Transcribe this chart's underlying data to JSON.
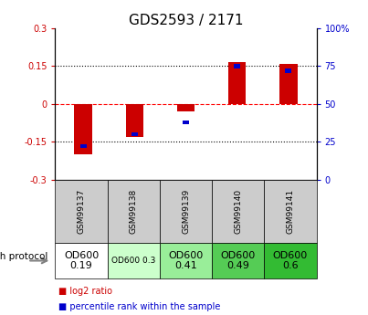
{
  "title": "GDS2593 / 2171",
  "samples": [
    "GSM99137",
    "GSM99138",
    "GSM99139",
    "GSM99140",
    "GSM99141"
  ],
  "log2_ratios": [
    -0.2,
    -0.13,
    -0.03,
    0.165,
    0.16
  ],
  "percentile_ranks": [
    22,
    30,
    38,
    75,
    72
  ],
  "ylim_left": [
    -0.3,
    0.3
  ],
  "ylim_right": [
    0,
    100
  ],
  "yticks_left": [
    -0.3,
    -0.15,
    0,
    0.15,
    0.3
  ],
  "ytick_labels_left": [
    "-0.3",
    "-0.15",
    "0",
    "0.15",
    "0.3"
  ],
  "yticks_right": [
    0,
    25,
    50,
    75,
    100
  ],
  "ytick_labels_right": [
    "0",
    "25",
    "50",
    "75",
    "100%"
  ],
  "hlines": [
    -0.15,
    0,
    0.15
  ],
  "hline_styles": [
    "dotted",
    "dashed",
    "dotted"
  ],
  "hline_colors": [
    "black",
    "red",
    "black"
  ],
  "bar_color_red": "#cc0000",
  "bar_color_blue": "#0000cc",
  "protocol_labels": [
    "OD600\n0.19",
    "OD600 0.3",
    "OD600\n0.41",
    "OD600\n0.49",
    "OD600\n0.6"
  ],
  "protocol_colors": [
    "#ffffff",
    "#ccffcc",
    "#99ee99",
    "#55cc55",
    "#33bb33"
  ],
  "protocol_text_sizes": [
    8,
    6.5,
    8,
    8,
    8
  ],
  "growth_protocol_label": "growth protocol",
  "legend_red_label": "log2 ratio",
  "legend_blue_label": "percentile rank within the sample",
  "tick_label_color_left": "#cc0000",
  "tick_label_color_right": "#0000cc",
  "sample_bg_color": "#cccccc"
}
